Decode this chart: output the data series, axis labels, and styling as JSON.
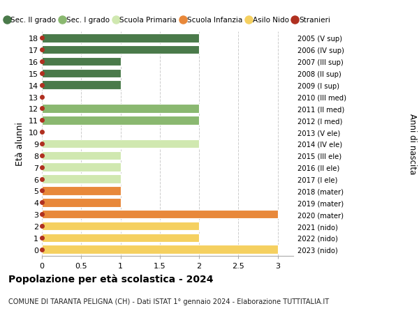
{
  "ages": [
    0,
    1,
    2,
    3,
    4,
    5,
    6,
    7,
    8,
    9,
    10,
    11,
    12,
    13,
    14,
    15,
    16,
    17,
    18
  ],
  "right_labels": [
    "2023 (nido)",
    "2022 (nido)",
    "2021 (nido)",
    "2020 (mater)",
    "2019 (mater)",
    "2018 (mater)",
    "2017 (I ele)",
    "2016 (II ele)",
    "2015 (III ele)",
    "2014 (IV ele)",
    "2013 (V ele)",
    "2012 (I med)",
    "2011 (II med)",
    "2010 (III med)",
    "2009 (I sup)",
    "2008 (II sup)",
    "2007 (III sup)",
    "2006 (IV sup)",
    "2005 (V sup)"
  ],
  "values": [
    3.0,
    2.0,
    2.0,
    3.0,
    1.0,
    1.0,
    1.0,
    1.0,
    1.0,
    2.0,
    0.0,
    2.0,
    2.0,
    0.0,
    1.0,
    1.0,
    1.0,
    2.0,
    2.0
  ],
  "bar_colors": [
    "#f5d060",
    "#f5d060",
    "#f5d060",
    "#e8883a",
    "#e8883a",
    "#e8883a",
    "#d0e8b0",
    "#d0e8b0",
    "#d0e8b0",
    "#d0e8b0",
    "#d0e8b0",
    "#8ab870",
    "#8ab870",
    "#8ab870",
    "#4a7a4a",
    "#4a7a4a",
    "#4a7a4a",
    "#4a7a4a",
    "#4a7a4a"
  ],
  "stranieri_marker_color": "#b03020",
  "grid_color": "#cccccc",
  "bg_color": "#ffffff",
  "title": "Popolazione per età scolastica - 2024",
  "subtitle": "COMUNE DI TARANTA PELIGNA (CH) - Dati ISTAT 1° gennaio 2024 - Elaborazione TUTTITALIA.IT",
  "ylabel": "Età alunni",
  "right_ylabel": "Anni di nascita",
  "xlim": [
    0,
    3.2
  ],
  "xticks": [
    0,
    0.5,
    1.0,
    1.5,
    2.0,
    2.5,
    3.0
  ],
  "legend_entries": [
    {
      "label": "Sec. II grado",
      "color": "#4a7a4a",
      "marker": false
    },
    {
      "label": "Sec. I grado",
      "color": "#8ab870",
      "marker": false
    },
    {
      "label": "Scuola Primaria",
      "color": "#d0e8b0",
      "marker": false
    },
    {
      "label": "Scuola Infanzia",
      "color": "#e8883a",
      "marker": false
    },
    {
      "label": "Asilo Nido",
      "color": "#f5d060",
      "marker": false
    },
    {
      "label": "Stranieri",
      "color": "#b03020",
      "marker": true
    }
  ],
  "bar_height": 0.75,
  "figsize": [
    6.0,
    4.6
  ],
  "dpi": 100
}
